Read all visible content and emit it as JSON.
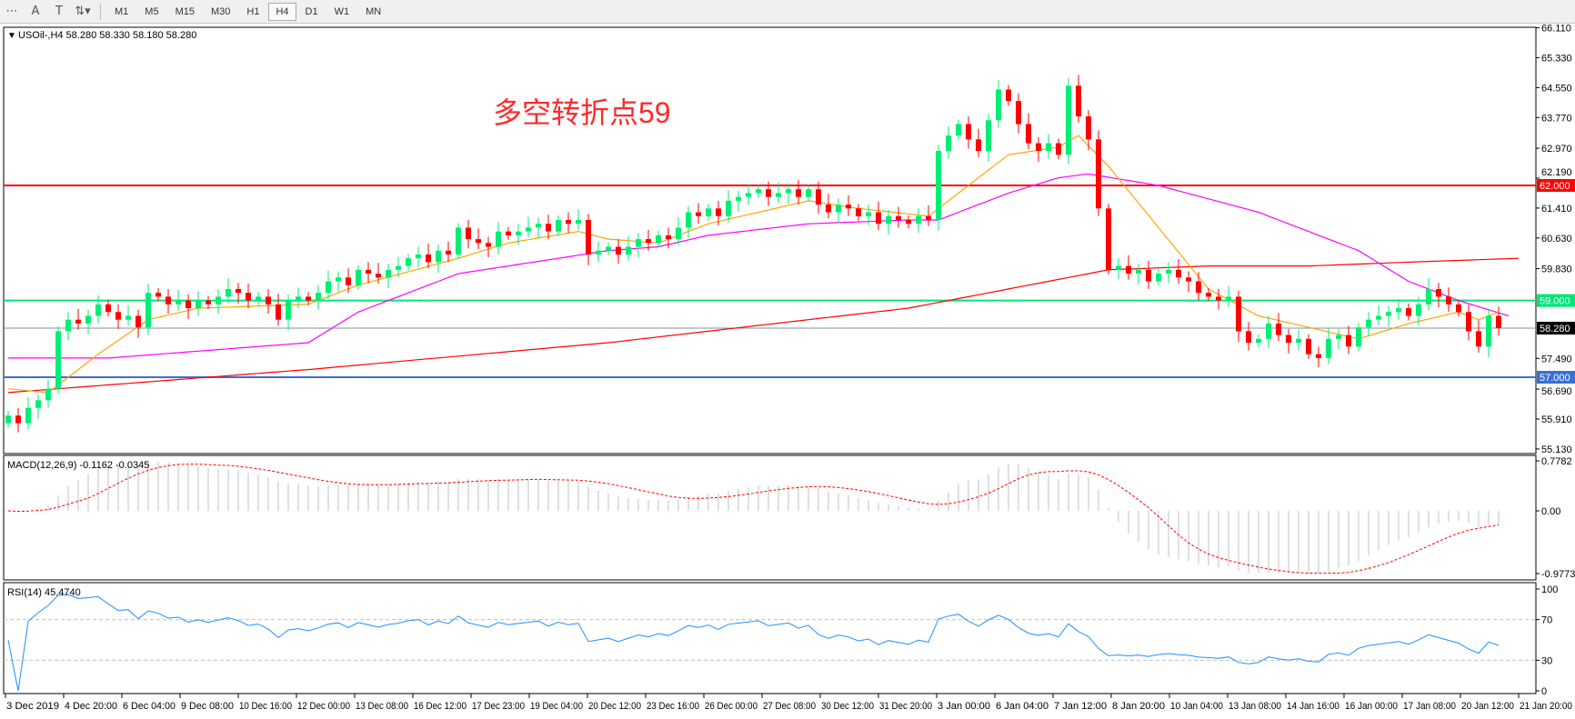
{
  "toolbar": {
    "icons": [
      "grid-f-icon",
      "text-a-icon",
      "text-label-icon",
      "arrows-icon"
    ],
    "timeframes": [
      "M1",
      "M5",
      "M15",
      "M30",
      "H1",
      "H4",
      "D1",
      "W1",
      "MN"
    ],
    "active_timeframe": "H4"
  },
  "main": {
    "header": "USOil-,H4  58.280 58.330 58.180 58.280",
    "annotation": "多空转折点59",
    "annotation_color": "#ff2a2a",
    "price_ticks": [
      "66.110",
      "65.330",
      "64.550",
      "63.770",
      "62.970",
      "62.190",
      "61.410",
      "60.630",
      "59.830",
      "57.490",
      "56.690",
      "55.910",
      "55.130"
    ],
    "levels": [
      {
        "price": 62.0,
        "label": "62.000",
        "color": "#ff0000"
      },
      {
        "price": 59.0,
        "label": "59.000",
        "color": "#00e676"
      },
      {
        "price": 57.0,
        "label": "57.000",
        "color": "#3a6fd8"
      }
    ],
    "current_price": {
      "price": 58.28,
      "label": "58.280"
    }
  },
  "chart_data": {
    "type": "candlestick",
    "symbol": "USOil-",
    "timeframe": "H4",
    "ylim": [
      55.13,
      66.11
    ],
    "bull_color": "#00ee76",
    "bear_color": "#ff0000",
    "closes": [
      56.0,
      55.8,
      56.2,
      56.4,
      56.7,
      58.2,
      58.5,
      58.4,
      58.6,
      58.9,
      58.7,
      58.5,
      58.6,
      58.3,
      59.2,
      59.1,
      58.9,
      59.0,
      58.8,
      59.0,
      58.9,
      59.1,
      59.3,
      59.2,
      59.0,
      59.1,
      58.9,
      58.5,
      59.0,
      59.1,
      59.0,
      59.2,
      59.5,
      59.6,
      59.4,
      59.8,
      59.7,
      59.6,
      59.8,
      59.9,
      60.1,
      60.2,
      60.0,
      60.3,
      60.2,
      60.9,
      60.6,
      60.5,
      60.4,
      60.8,
      60.7,
      60.8,
      60.9,
      61.0,
      60.8,
      61.1,
      61.0,
      61.1,
      60.2,
      60.3,
      60.4,
      60.2,
      60.4,
      60.6,
      60.5,
      60.7,
      60.6,
      60.9,
      61.3,
      61.2,
      61.4,
      61.2,
      61.6,
      61.7,
      61.8,
      61.9,
      61.7,
      61.8,
      61.9,
      61.7,
      61.9,
      61.5,
      61.3,
      61.5,
      61.4,
      61.2,
      61.3,
      61.0,
      61.2,
      61.1,
      61.0,
      61.2,
      61.1,
      62.9,
      63.3,
      63.6,
      63.2,
      62.9,
      63.7,
      64.5,
      64.2,
      63.6,
      63.1,
      62.9,
      63.1,
      62.8,
      64.6,
      63.8,
      63.2,
      61.4,
      59.8,
      59.9,
      59.7,
      59.8,
      59.5,
      59.7,
      59.8,
      59.6,
      59.5,
      59.2,
      59.1,
      59.0,
      59.1,
      58.2,
      57.9,
      58.0,
      58.4,
      58.1,
      57.9,
      58.0,
      57.6,
      57.5,
      58.0,
      58.1,
      57.8,
      58.3,
      58.5,
      58.6,
      58.7,
      58.8,
      58.6,
      58.9,
      59.3,
      59.1,
      58.9,
      58.7,
      58.2,
      57.8,
      58.6,
      58.28
    ],
    "ma_fast": {
      "color": "#ffa500",
      "points": [
        [
          0,
          56.7
        ],
        [
          4,
          56.6
        ],
        [
          9,
          57.6
        ],
        [
          14,
          58.5
        ],
        [
          19,
          58.8
        ],
        [
          30,
          58.9
        ],
        [
          35,
          59.4
        ],
        [
          45,
          60.1
        ],
        [
          50,
          60.5
        ],
        [
          57,
          60.8
        ],
        [
          60,
          60.6
        ],
        [
          65,
          60.5
        ],
        [
          70,
          61.0
        ],
        [
          80,
          61.6
        ],
        [
          85,
          61.4
        ],
        [
          92,
          61.2
        ],
        [
          96,
          62.0
        ],
        [
          100,
          62.8
        ],
        [
          105,
          63.0
        ],
        [
          107,
          63.3
        ],
        [
          110,
          62.5
        ],
        [
          115,
          60.9
        ],
        [
          120,
          59.3
        ],
        [
          125,
          58.6
        ],
        [
          130,
          58.3
        ],
        [
          135,
          58.0
        ],
        [
          140,
          58.4
        ],
        [
          145,
          58.7
        ],
        [
          147,
          58.5
        ],
        [
          149,
          58.7
        ]
      ]
    },
    "ma_mid": {
      "color": "#ff00ff",
      "points": [
        [
          0,
          57.5
        ],
        [
          10,
          57.5
        ],
        [
          20,
          57.7
        ],
        [
          30,
          57.9
        ],
        [
          35,
          58.7
        ],
        [
          45,
          59.7
        ],
        [
          60,
          60.3
        ],
        [
          65,
          60.4
        ],
        [
          70,
          60.7
        ],
        [
          80,
          61.0
        ],
        [
          90,
          61.1
        ],
        [
          93,
          61.1
        ],
        [
          100,
          61.8
        ],
        [
          105,
          62.2
        ],
        [
          108,
          62.3
        ],
        [
          115,
          62.0
        ],
        [
          125,
          61.3
        ],
        [
          135,
          60.3
        ],
        [
          140,
          59.5
        ],
        [
          145,
          59.0
        ],
        [
          150,
          58.6
        ]
      ]
    },
    "ma_slow": {
      "color": "#ff0000",
      "points": [
        [
          0,
          56.6
        ],
        [
          30,
          57.2
        ],
        [
          60,
          57.9
        ],
        [
          90,
          58.8
        ],
        [
          100,
          59.3
        ],
        [
          110,
          59.8
        ],
        [
          120,
          59.9
        ],
        [
          130,
          59.9
        ],
        [
          140,
          60.0
        ],
        [
          151,
          60.1
        ]
      ]
    },
    "x_tick_labels": [
      "3 Dec 2019",
      "4 Dec 20:00",
      "6 Dec 04:00",
      "9 Dec 08:00",
      "10 Dec 16:00",
      "12 Dec 00:00",
      "13 Dec 08:00",
      "16 Dec 12:00",
      "17 Dec 23:00",
      "19 Dec 04:00",
      "20 Dec 12:00",
      "23 Dec 16:00",
      "26 Dec 00:00",
      "27 Dec 08:00",
      "30 Dec 12:00",
      "31 Dec 20:00",
      "3 Jan 00:00",
      "6 Jan 04:00",
      "7 Jan 12:00",
      "8 Jan 20:00",
      "10 Jan 04:00",
      "13 Jan 08:00",
      "14 Jan 16:00",
      "16 Jan 00:00",
      "17 Jan 08:00",
      "20 Jan 12:00",
      "21 Jan 20:00"
    ]
  },
  "macd": {
    "header": "MACD(12,26,9) -0.1162 -0.0345",
    "ticks": [
      "0.7782",
      "0.00",
      "-0.9773"
    ],
    "ylim": [
      -0.9773,
      0.7782
    ],
    "hist_color": "#c0c0c0",
    "signal_color": "#ff0000"
  },
  "rsi": {
    "header": "RSI(14) 45.4740",
    "ticks": [
      "100",
      "70",
      "30",
      "0"
    ],
    "levels": [
      70,
      30
    ],
    "line_color": "#1e90ff"
  }
}
